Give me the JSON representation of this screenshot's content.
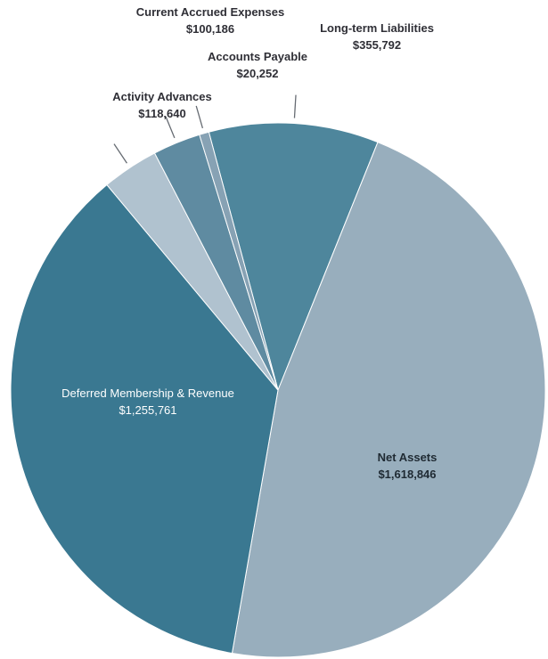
{
  "chart_data": {
    "type": "pie",
    "title": "",
    "slices": [
      {
        "label": "Long-term Liabilities",
        "value_label": "$355,792",
        "value": 355792,
        "color": "#4e869c"
      },
      {
        "label": "Net Assets",
        "value_label": "$1,618,846",
        "value": 1618846,
        "color": "#98aebd"
      },
      {
        "label": "Deferred Membership & Revenue",
        "value_label": "$1,255,761",
        "value": 1255761,
        "color": "#3a7891"
      },
      {
        "label": "Activity Advances",
        "value_label": "$118,640",
        "value": 118640,
        "color": "#b0c2cf"
      },
      {
        "label": "Current Accrued Expenses",
        "value_label": "$100,186",
        "value": 100186,
        "color": "#5f8ba1"
      },
      {
        "label": "Accounts Payable",
        "value_label": "$20,252",
        "value": 20252,
        "color": "#87a2b4"
      }
    ]
  }
}
